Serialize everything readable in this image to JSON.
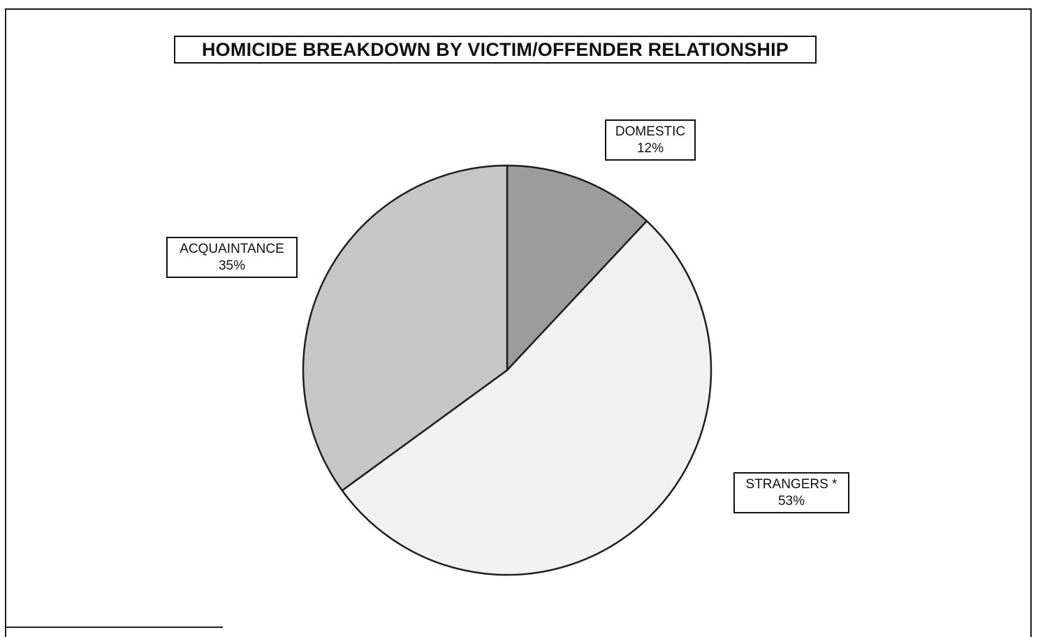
{
  "chart_data": {
    "type": "pie",
    "title": "HOMICIDE BREAKDOWN BY VICTIM/OFFENDER RELATIONSHIP",
    "slices": [
      {
        "label": "DOMESTIC",
        "value": 12,
        "value_label": "12%",
        "color": "#9c9c9c"
      },
      {
        "label": "STRANGERS *",
        "value": 53,
        "value_label": "53%",
        "color": "#f1f1f1"
      },
      {
        "label": "ACQUAINTANCE",
        "value": 35,
        "value_label": "35%",
        "color": "#c6c6c6"
      }
    ],
    "start_angle_deg": 0,
    "direction": "clockwise",
    "legend": "none"
  }
}
